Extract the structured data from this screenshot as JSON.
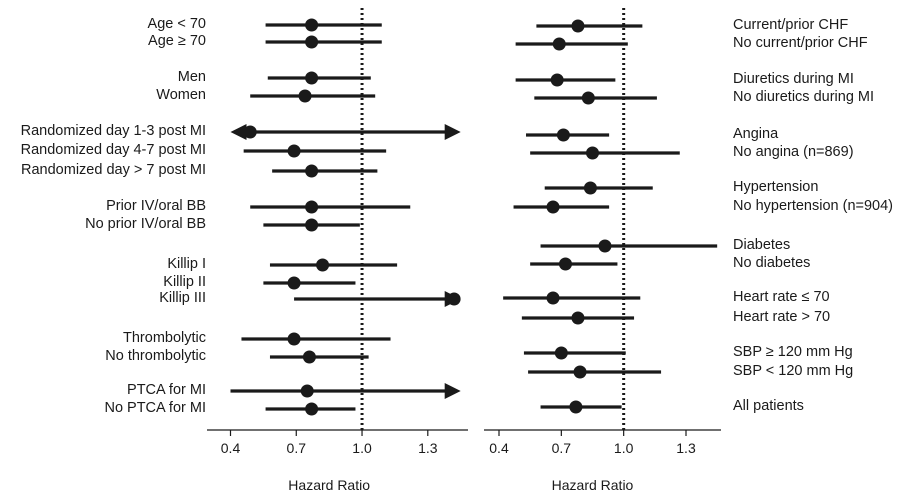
{
  "chart_data": [
    {
      "type": "forest",
      "panel": "left",
      "xlabel": "Hazard Ratio",
      "xlim": [
        0.4,
        1.45
      ],
      "xticks": [
        0.4,
        0.7,
        1.0,
        1.3
      ],
      "xtick_labels": [
        "0.4",
        "0.7",
        "1.0",
        "1.3"
      ],
      "reference_line": 1.0,
      "rows": [
        {
          "label": "Age < 70",
          "hr": 0.77,
          "lo": 0.56,
          "hi": 1.09
        },
        {
          "label": "Age ≥ 70",
          "hr": 0.77,
          "lo": 0.56,
          "hi": 1.09
        },
        {
          "label": "Men",
          "hr": 0.77,
          "lo": 0.57,
          "hi": 1.04
        },
        {
          "label": "Women",
          "hr": 0.74,
          "lo": 0.49,
          "hi": 1.06
        },
        {
          "label": "Randomized day 1-3 post MI",
          "hr": 0.49,
          "lo": 0.4,
          "hi": 1.45,
          "arrow_left": true,
          "arrow_right": true
        },
        {
          "label": "Randomized day 4-7 post MI",
          "hr": 0.69,
          "lo": 0.46,
          "hi": 1.11
        },
        {
          "label": "Randomized day > 7 post MI",
          "hr": 0.77,
          "lo": 0.59,
          "hi": 1.07
        },
        {
          "label": "Prior IV/oral BB",
          "hr": 0.77,
          "lo": 0.49,
          "hi": 1.22
        },
        {
          "label": "No prior IV/oral BB",
          "hr": 0.77,
          "lo": 0.55,
          "hi": 0.99
        },
        {
          "label": "Killip I",
          "hr": 0.82,
          "lo": 0.58,
          "hi": 1.16
        },
        {
          "label": "Killip II",
          "hr": 0.69,
          "lo": 0.55,
          "hi": 0.97
        },
        {
          "label": "Killip III",
          "hr": 1.42,
          "lo": 0.69,
          "hi": 1.45,
          "arrow_right": true
        },
        {
          "label": "Thrombolytic",
          "hr": 0.69,
          "lo": 0.45,
          "hi": 1.13
        },
        {
          "label": "No thrombolytic",
          "hr": 0.76,
          "lo": 0.58,
          "hi": 1.03
        },
        {
          "label": "PTCA for MI",
          "hr": 0.75,
          "lo": 0.4,
          "hi": 1.45,
          "arrow_right": true
        },
        {
          "label": "No PTCA for MI",
          "hr": 0.77,
          "lo": 0.56,
          "hi": 0.97
        }
      ]
    },
    {
      "type": "forest",
      "panel": "right",
      "xlabel": "Hazard Ratio",
      "xlim": [
        0.4,
        1.45
      ],
      "xticks": [
        0.4,
        0.7,
        1.0,
        1.3
      ],
      "xtick_labels": [
        "0.4",
        "0.7",
        "1.0",
        "1.3"
      ],
      "reference_line": 1.0,
      "rows": [
        {
          "label": "Current/prior CHF",
          "hr": 0.78,
          "lo": 0.58,
          "hi": 1.09
        },
        {
          "label": "No current/prior CHF",
          "hr": 0.69,
          "lo": 0.48,
          "hi": 1.02
        },
        {
          "label": "Diuretics during MI",
          "hr": 0.68,
          "lo": 0.48,
          "hi": 0.96
        },
        {
          "label": "No diuretics during MI",
          "hr": 0.83,
          "lo": 0.57,
          "hi": 1.16
        },
        {
          "label": "Angina",
          "hr": 0.71,
          "lo": 0.53,
          "hi": 0.93
        },
        {
          "label": "No angina (n=869)",
          "hr": 0.85,
          "lo": 0.55,
          "hi": 1.27
        },
        {
          "label": "Hypertension",
          "hr": 0.84,
          "lo": 0.62,
          "hi": 1.14
        },
        {
          "label": "No hypertension (n=904)",
          "hr": 0.66,
          "lo": 0.47,
          "hi": 0.93
        },
        {
          "label": "Diabetes",
          "hr": 0.91,
          "lo": 0.6,
          "hi": 1.45
        },
        {
          "label": "No diabetes",
          "hr": 0.72,
          "lo": 0.55,
          "hi": 0.97
        },
        {
          "label": "Heart rate ≤ 70",
          "hr": 0.66,
          "lo": 0.42,
          "hi": 1.08
        },
        {
          "label": "Heart rate > 70",
          "hr": 0.78,
          "lo": 0.51,
          "hi": 1.05
        },
        {
          "label": "SBP ≥ 120 mm Hg",
          "hr": 0.7,
          "lo": 0.52,
          "hi": 1.01
        },
        {
          "label": "SBP < 120 mm Hg",
          "hr": 0.79,
          "lo": 0.54,
          "hi": 1.18
        },
        {
          "label": "All patients",
          "hr": 0.77,
          "lo": 0.6,
          "hi": 0.99
        }
      ]
    }
  ]
}
